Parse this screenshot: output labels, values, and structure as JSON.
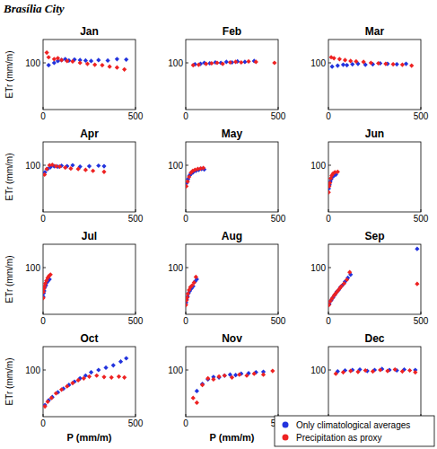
{
  "title": "Brasília City",
  "chart_data": [
    {
      "type": "scatter",
      "title": "Jan",
      "ylabel": "ETr (mm/m)",
      "xlim": [
        0,
        500
      ],
      "ylim": [
        0,
        150
      ],
      "xticks": [
        0,
        500
      ],
      "yticks": [
        100
      ],
      "marker": "diamond",
      "series": [
        {
          "color": "#2233dd",
          "x": [
            30,
            60,
            80,
            100,
            120,
            140,
            170,
            200,
            230,
            260,
            300,
            350,
            400,
            450
          ],
          "values": [
            95,
            100,
            104,
            106,
            108,
            105,
            107,
            106,
            105,
            104,
            106,
            105,
            108,
            107
          ]
        },
        {
          "color": "#ee2222",
          "x": [
            20,
            30,
            60,
            80,
            100,
            130,
            160,
            200,
            240,
            280,
            320,
            360,
            400,
            440
          ],
          "values": [
            122,
            112,
            108,
            110,
            106,
            104,
            103,
            100,
            98,
            96,
            95,
            92,
            90,
            86
          ]
        }
      ]
    },
    {
      "type": "scatter",
      "title": "Feb",
      "xlim": [
        0,
        500
      ],
      "ylim": [
        0,
        150
      ],
      "xticks": [
        0,
        500
      ],
      "yticks": [
        100
      ],
      "marker": "diamond",
      "series": [
        {
          "color": "#2233dd",
          "x": [
            50,
            80,
            100,
            130,
            160,
            190,
            220,
            250,
            280,
            320,
            370
          ],
          "values": [
            97,
            98,
            100,
            99,
            101,
            100,
            102,
            101,
            103,
            102,
            104
          ]
        },
        {
          "color": "#ee2222",
          "x": [
            40,
            70,
            110,
            140,
            170,
            200,
            240,
            270,
            300,
            340,
            380,
            480
          ],
          "values": [
            95,
            96,
            98,
            99,
            100,
            98,
            101,
            102,
            101,
            103,
            102,
            100
          ]
        }
      ]
    },
    {
      "type": "scatter",
      "title": "Mar",
      "xlim": [
        0,
        500
      ],
      "ylim": [
        0,
        150
      ],
      "xticks": [
        0,
        500
      ],
      "yticks": [
        100
      ],
      "marker": "diamond",
      "series": [
        {
          "color": "#2233dd",
          "x": [
            20,
            50,
            80,
            100,
            130,
            160,
            200,
            240,
            280,
            320,
            370,
            420
          ],
          "values": [
            92,
            94,
            96,
            95,
            97,
            98,
            96,
            97,
            99,
            98,
            97,
            98
          ]
        },
        {
          "color": "#ee2222",
          "x": [
            15,
            30,
            60,
            90,
            120,
            150,
            190,
            230,
            270,
            310,
            350,
            400,
            450
          ],
          "values": [
            112,
            110,
            108,
            106,
            104,
            103,
            102,
            100,
            99,
            98,
            97,
            96,
            94
          ]
        }
      ]
    },
    {
      "type": "scatter",
      "title": "Apr",
      "ylabel": "ETr (mm/m)",
      "xlim": [
        0,
        500
      ],
      "ylim": [
        0,
        150
      ],
      "xticks": [
        0,
        500
      ],
      "yticks": [
        100
      ],
      "marker": "diamond",
      "series": [
        {
          "color": "#2233dd",
          "x": [
            10,
            25,
            40,
            60,
            80,
            100,
            130,
            160,
            200,
            250,
            300,
            330
          ],
          "values": [
            85,
            92,
            96,
            98,
            97,
            99,
            98,
            100,
            97,
            98,
            99,
            98
          ]
        },
        {
          "color": "#ee2222",
          "x": [
            8,
            20,
            35,
            50,
            70,
            90,
            120,
            150,
            190,
            230,
            270,
            330
          ],
          "values": [
            80,
            92,
            100,
            101,
            98,
            97,
            95,
            93,
            92,
            90,
            88,
            86
          ]
        }
      ]
    },
    {
      "type": "scatter",
      "title": "May",
      "xlim": [
        0,
        500
      ],
      "ylim": [
        0,
        150
      ],
      "xticks": [
        0,
        500
      ],
      "yticks": [
        100
      ],
      "marker": "diamond",
      "series": [
        {
          "color": "#2233dd",
          "x": [
            5,
            12,
            20,
            30,
            40,
            55,
            70,
            85,
            100
          ],
          "values": [
            62,
            70,
            78,
            82,
            85,
            88,
            90,
            92,
            91
          ]
        },
        {
          "color": "#ee2222",
          "x": [
            3,
            10,
            18,
            28,
            38,
            50,
            65,
            80,
            95
          ],
          "values": [
            55,
            65,
            75,
            84,
            88,
            90,
            92,
            93,
            94
          ]
        }
      ]
    },
    {
      "type": "scatter",
      "title": "Jun",
      "xlim": [
        0,
        500
      ],
      "ylim": [
        0,
        150
      ],
      "xticks": [
        0,
        500
      ],
      "yticks": [
        100
      ],
      "marker": "diamond",
      "series": [
        {
          "color": "#2233dd",
          "x": [
            2,
            6,
            10,
            15,
            22,
            30,
            40
          ],
          "values": [
            50,
            58,
            65,
            70,
            75,
            78,
            80
          ]
        },
        {
          "color": "#ee2222",
          "x": [
            1,
            4,
            8,
            12,
            18,
            25,
            35,
            50
          ],
          "values": [
            42,
            55,
            62,
            72,
            78,
            82,
            85,
            86
          ]
        }
      ]
    },
    {
      "type": "scatter",
      "title": "Jul",
      "ylabel": "ETr (mm/m)",
      "xlim": [
        0,
        500
      ],
      "ylim": [
        0,
        150
      ],
      "xticks": [
        0,
        500
      ],
      "yticks": [
        100
      ],
      "marker": "diamond",
      "series": [
        {
          "color": "#2233dd",
          "x": [
            1,
            3,
            6,
            10,
            15,
            20,
            28,
            35
          ],
          "values": [
            38,
            45,
            50,
            58,
            62,
            68,
            72,
            75
          ]
        },
        {
          "color": "#ee2222",
          "x": [
            1,
            2,
            5,
            8,
            12,
            18,
            25,
            32,
            40
          ],
          "values": [
            35,
            48,
            55,
            60,
            66,
            72,
            78,
            82,
            85
          ]
        }
      ]
    },
    {
      "type": "scatter",
      "title": "Aug",
      "xlim": [
        0,
        500
      ],
      "ylim": [
        0,
        150
      ],
      "xticks": [
        0,
        500
      ],
      "yticks": [
        100
      ],
      "marker": "diamond",
      "series": [
        {
          "color": "#2233dd",
          "x": [
            2,
            5,
            10,
            15,
            22,
            30,
            40,
            50,
            60
          ],
          "values": [
            25,
            32,
            38,
            45,
            50,
            55,
            60,
            70,
            75
          ]
        },
        {
          "color": "#ee2222",
          "x": [
            1,
            4,
            8,
            12,
            18,
            25,
            35,
            45,
            55
          ],
          "values": [
            20,
            30,
            36,
            44,
            52,
            58,
            62,
            68,
            80
          ]
        }
      ]
    },
    {
      "type": "scatter",
      "title": "Sep",
      "xlim": [
        0,
        500
      ],
      "ylim": [
        0,
        150
      ],
      "xticks": [
        0,
        500
      ],
      "yticks": [
        100
      ],
      "marker": "diamond",
      "series": [
        {
          "color": "#2233dd",
          "x": [
            5,
            15,
            25,
            35,
            45,
            55,
            65,
            75,
            90,
            105,
            120,
            480
          ],
          "values": [
            22,
            30,
            36,
            42,
            48,
            52,
            58,
            62,
            70,
            78,
            85,
            140
          ]
        },
        {
          "color": "#ee2222",
          "x": [
            3,
            10,
            20,
            30,
            40,
            50,
            60,
            70,
            85,
            100,
            115,
            480
          ],
          "values": [
            20,
            28,
            34,
            40,
            45,
            50,
            55,
            60,
            66,
            74,
            90,
            65
          ]
        }
      ]
    },
    {
      "type": "scatter",
      "title": "Oct",
      "ylabel": "ETr (mm/m)",
      "xlabel": "P (mm/m)",
      "xlim": [
        0,
        500
      ],
      "ylim": [
        0,
        150
      ],
      "xticks": [
        0,
        500
      ],
      "yticks": [
        100
      ],
      "marker": "diamond",
      "series": [
        {
          "color": "#2233dd",
          "x": [
            10,
            30,
            50,
            80,
            110,
            140,
            170,
            200,
            230,
            260,
            300,
            340,
            380,
            420,
            450
          ],
          "values": [
            25,
            35,
            42,
            52,
            60,
            68,
            75,
            82,
            88,
            95,
            100,
            105,
            110,
            118,
            125
          ]
        },
        {
          "color": "#ee2222",
          "x": [
            10,
            25,
            45,
            70,
            100,
            130,
            160,
            190,
            220,
            250,
            290,
            330,
            370,
            410,
            440
          ],
          "values": [
            22,
            32,
            40,
            50,
            58,
            65,
            72,
            78,
            82,
            86,
            88,
            85,
            84,
            86,
            84
          ]
        }
      ]
    },
    {
      "type": "scatter",
      "title": "Nov",
      "xlabel": "P (mm/m)",
      "xlim": [
        0,
        500
      ],
      "ylim": [
        0,
        150
      ],
      "xticks": [
        0,
        500
      ],
      "yticks": [
        100
      ],
      "marker": "diamond",
      "series": [
        {
          "color": "#2233dd",
          "x": [
            60,
            90,
            120,
            150,
            180,
            210,
            240,
            270,
            300,
            340,
            380,
            420
          ],
          "values": [
            55,
            70,
            80,
            85,
            84,
            88,
            90,
            89,
            92,
            93,
            95,
            96
          ]
        },
        {
          "color": "#ee2222",
          "x": [
            40,
            60,
            90,
            120,
            150,
            180,
            210,
            250,
            290,
            330,
            370,
            420,
            470
          ],
          "values": [
            40,
            30,
            68,
            82,
            80,
            86,
            88,
            84,
            90,
            88,
            92,
            90,
            98
          ]
        }
      ]
    },
    {
      "type": "scatter",
      "title": "Dec",
      "xlim": [
        0,
        500
      ],
      "ylim": [
        0,
        150
      ],
      "xticks": [
        0,
        500
      ],
      "yticks": [
        100
      ],
      "marker": "diamond",
      "legend": "lower right",
      "series": [
        {
          "name": "Only climatological averages",
          "color": "#2233dd",
          "x": [
            50,
            90,
            130,
            170,
            210,
            250,
            290,
            330,
            370,
            410,
            470
          ],
          "values": [
            97,
            99,
            100,
            101,
            98,
            100,
            102,
            100,
            99,
            101,
            100
          ]
        },
        {
          "name": "Precipitation as proxy",
          "color": "#ee2222",
          "x": [
            40,
            80,
            120,
            160,
            200,
            240,
            280,
            320,
            360,
            400,
            440,
            470
          ],
          "values": [
            92,
            95,
            98,
            96,
            99,
            97,
            100,
            98,
            101,
            97,
            99,
            95
          ]
        }
      ]
    }
  ]
}
